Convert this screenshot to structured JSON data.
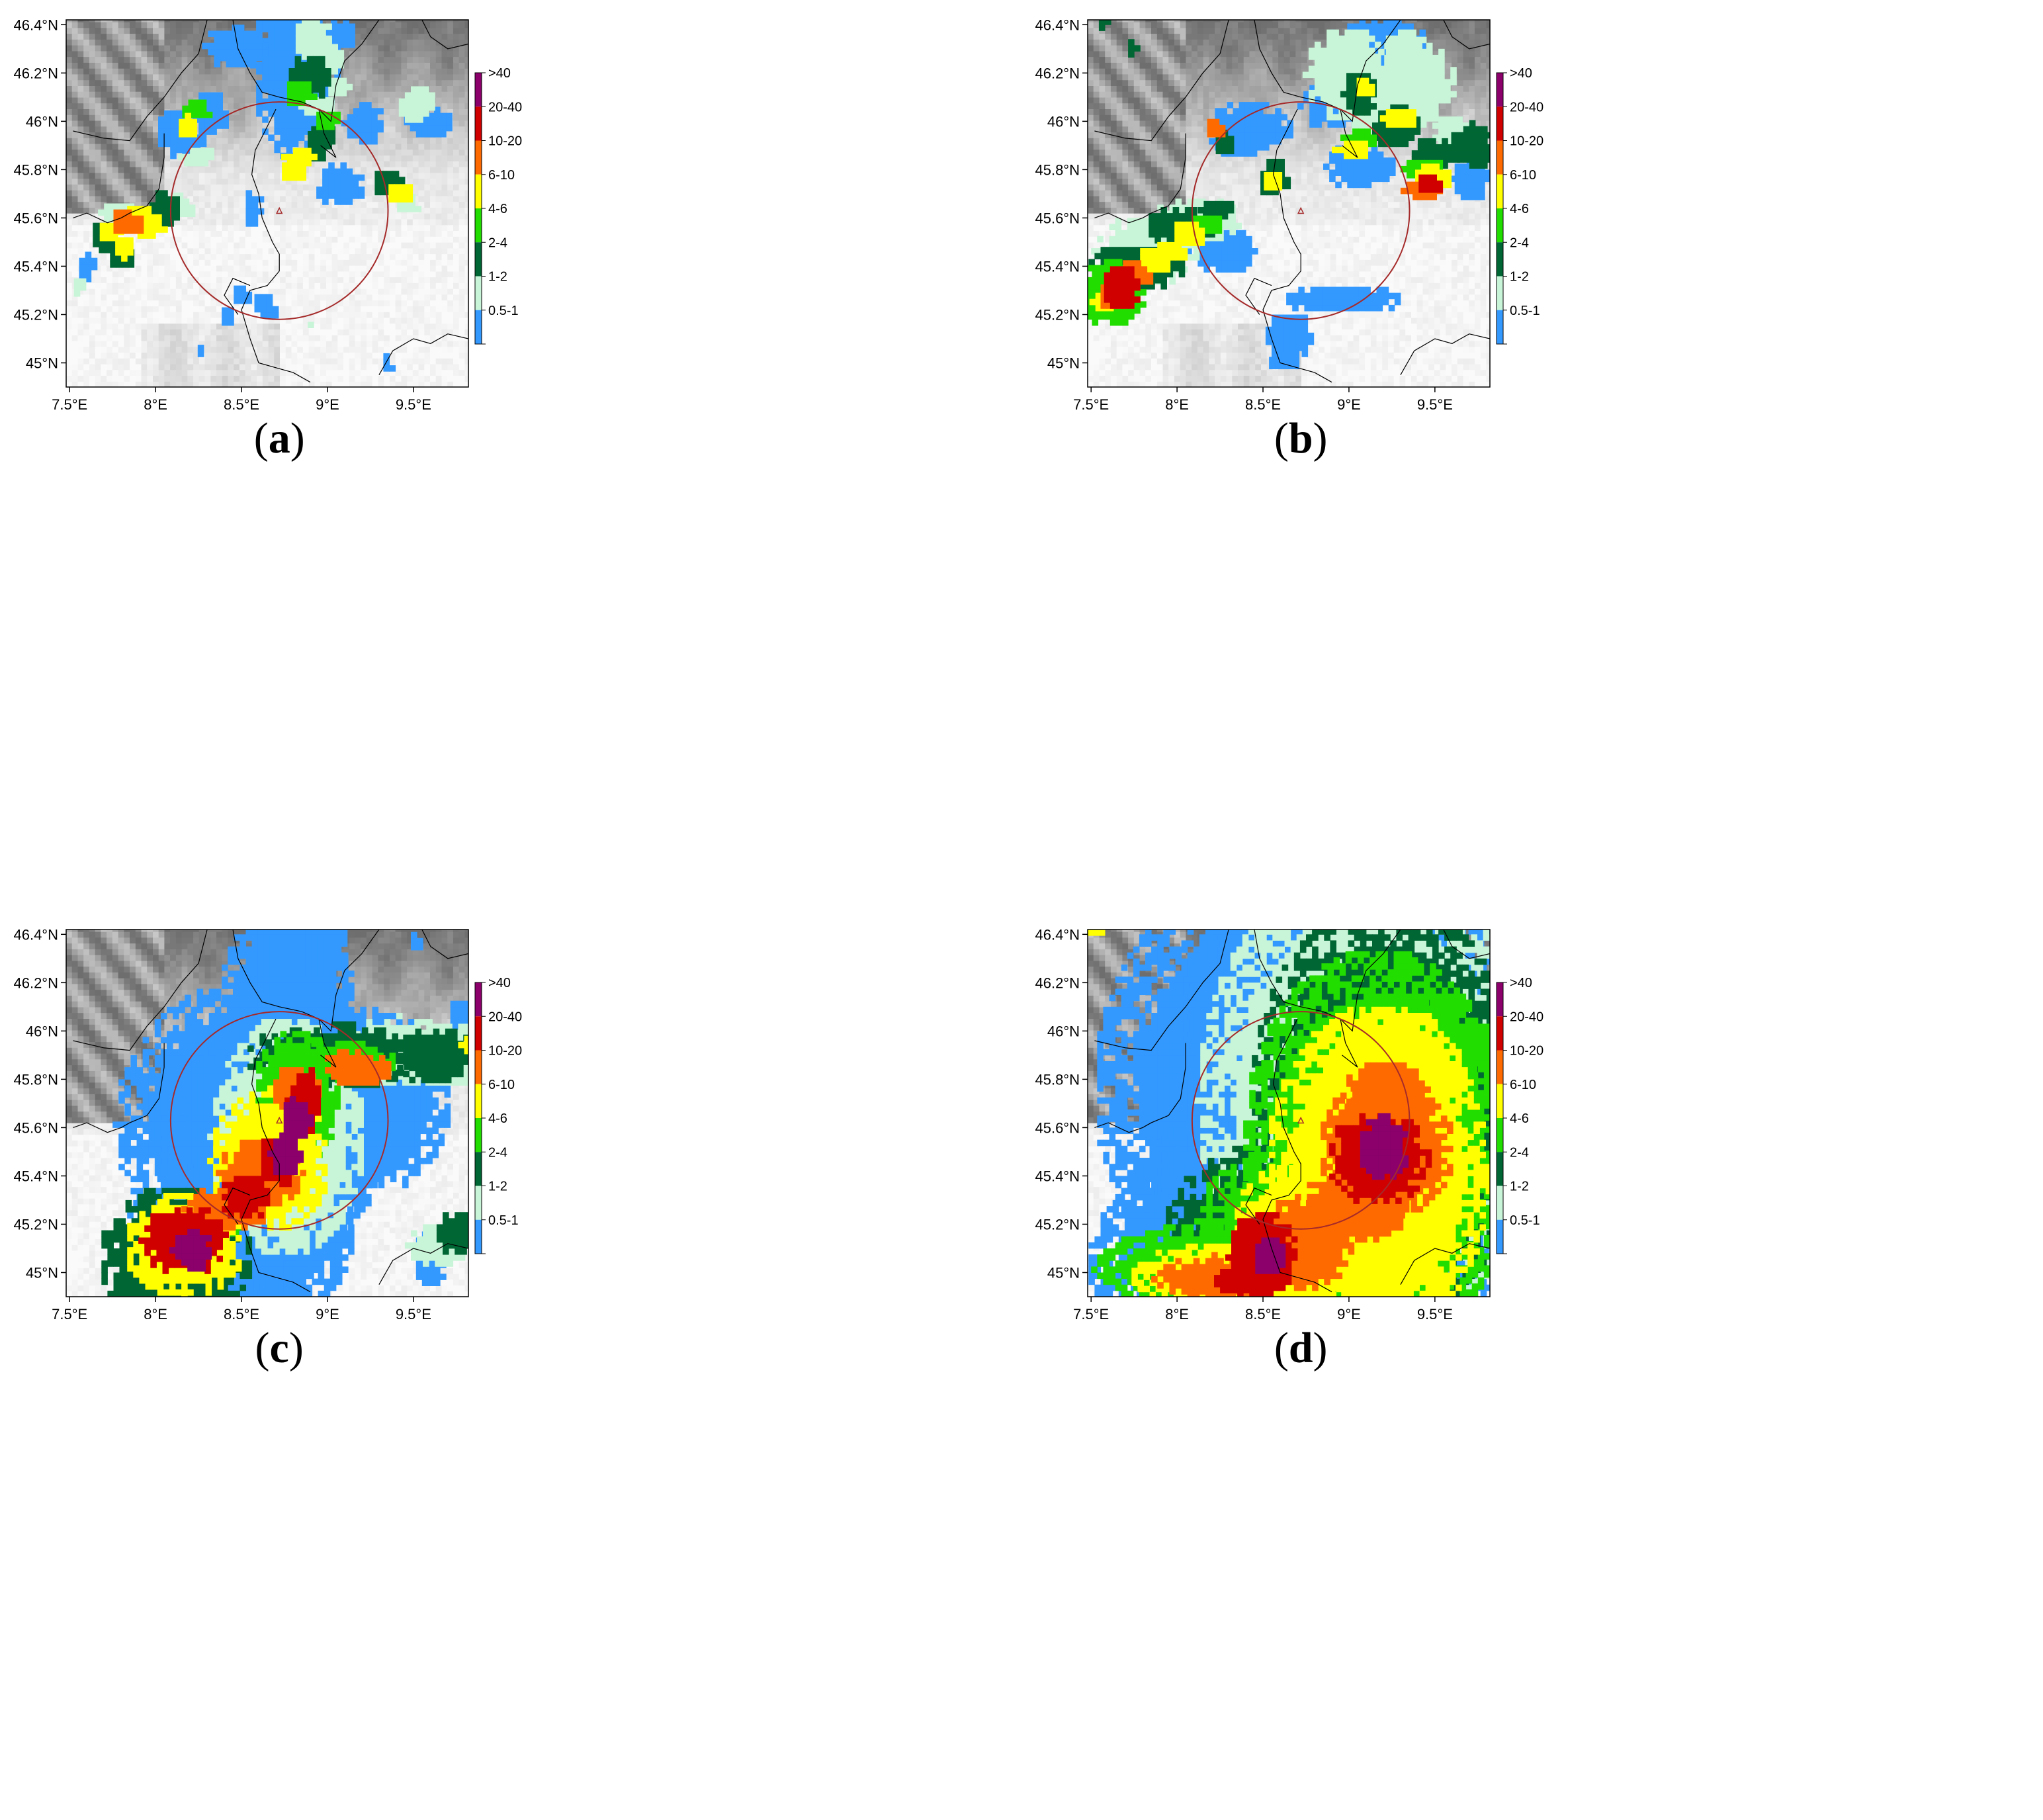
{
  "axes": {
    "lat_ticks": [
      "46.4°N",
      "46.2°N",
      "46°N",
      "45.8°N",
      "45.6°N",
      "45.4°N",
      "45.2°N",
      "45°N"
    ],
    "lat_values": [
      46.4,
      46.2,
      46.0,
      45.8,
      45.6,
      45.4,
      45.2,
      45.0
    ],
    "lon_ticks": [
      "7.5°E",
      "8°E",
      "8.5°E",
      "9°E",
      "9.5°E"
    ],
    "lon_values": [
      7.5,
      8.0,
      8.5,
      9.0,
      9.5
    ],
    "lon_range": [
      7.48,
      9.82
    ],
    "lat_range": [
      44.9,
      46.42
    ]
  },
  "legend": {
    "labels": [
      ">40",
      "20-40",
      "10-20",
      "6-10",
      "4-6",
      "2-4",
      "1-2",
      "0.5-1"
    ],
    "colors": [
      "#8b006b",
      "#d00000",
      "#ff6a00",
      "#ffff00",
      "#22dd00",
      "#006633",
      "#c8f5d8",
      "#3399ff"
    ]
  },
  "radar": {
    "center": [
      8.72,
      45.63
    ],
    "radius_deg_lat": 0.45,
    "circle_color": "#a52a2a",
    "marker": "triangle"
  },
  "panels": [
    {
      "id": "a",
      "caption_open": "(",
      "caption_letter": "a",
      "caption_close": ")",
      "cells": [
        [
          7.82,
          45.57,
          0.1,
          0.06,
          2
        ],
        [
          7.72,
          45.53,
          0.08,
          0.05,
          3
        ],
        [
          7.88,
          45.6,
          0.08,
          0.05,
          3
        ],
        [
          7.8,
          45.47,
          0.07,
          0.05,
          3
        ],
        [
          7.95,
          45.55,
          0.09,
          0.06,
          3
        ],
        [
          7.68,
          45.5,
          0.08,
          0.07,
          5
        ],
        [
          8.03,
          45.62,
          0.1,
          0.08,
          5
        ],
        [
          7.78,
          45.43,
          0.08,
          0.06,
          5
        ],
        [
          7.58,
          45.38,
          0.06,
          0.07,
          7
        ],
        [
          7.53,
          45.3,
          0.04,
          0.05,
          6
        ],
        [
          7.75,
          45.61,
          0.12,
          0.05,
          6
        ],
        [
          8.12,
          45.64,
          0.1,
          0.06,
          6
        ],
        [
          8.17,
          45.97,
          0.07,
          0.06,
          3
        ],
        [
          8.16,
          45.9,
          0.11,
          0.08,
          7
        ],
        [
          8.22,
          46.03,
          0.1,
          0.04,
          4
        ],
        [
          8.23,
          45.84,
          0.1,
          0.05,
          6
        ],
        [
          8.83,
          45.84,
          0.1,
          0.05,
          3
        ],
        [
          8.78,
          45.78,
          0.08,
          0.05,
          3
        ],
        [
          8.93,
          45.88,
          0.08,
          0.07,
          5
        ],
        [
          8.88,
          46.17,
          0.14,
          0.1,
          5
        ],
        [
          8.82,
          46.1,
          0.09,
          0.06,
          4
        ],
        [
          8.94,
          46.05,
          0.11,
          0.05,
          6
        ],
        [
          9.05,
          46.13,
          0.08,
          0.05,
          6
        ],
        [
          8.95,
          45.94,
          0.08,
          0.06,
          5
        ],
        [
          8.98,
          45.99,
          0.08,
          0.05,
          4
        ],
        [
          9.34,
          45.73,
          0.1,
          0.06,
          5
        ],
        [
          9.4,
          45.69,
          0.08,
          0.05,
          3
        ],
        [
          9.45,
          45.64,
          0.08,
          0.04,
          6
        ],
        [
          8.9,
          46.33,
          0.12,
          0.1,
          6
        ],
        [
          9.0,
          46.25,
          0.08,
          0.08,
          6
        ],
        [
          8.8,
          46.22,
          0.25,
          0.4,
          7
        ],
        [
          9.05,
          46.35,
          0.1,
          0.07,
          7
        ],
        [
          9.05,
          45.72,
          0.15,
          0.09,
          7
        ],
        [
          8.55,
          45.62,
          0.06,
          0.08,
          7
        ],
        [
          8.45,
          46.3,
          0.18,
          0.1,
          7
        ],
        [
          9.2,
          45.98,
          0.12,
          0.1,
          7
        ],
        [
          9.5,
          46.05,
          0.12,
          0.08,
          6
        ],
        [
          9.56,
          45.98,
          0.15,
          0.07,
          7
        ],
        [
          7.4,
          45.8,
          0.0,
          0.0,
          7
        ],
        [
          8.48,
          45.27,
          0.06,
          0.05,
          7
        ],
        [
          8.62,
          45.22,
          0.08,
          0.06,
          7
        ],
        [
          8.4,
          45.18,
          0.05,
          0.05,
          7
        ],
        [
          8.24,
          45.03,
          0.03,
          0.03,
          7
        ],
        [
          9.33,
          44.98,
          0.04,
          0.04,
          7
        ],
        [
          8.87,
          45.15,
          0.02,
          0.03,
          6
        ],
        [
          8.3,
          46.02,
          0.12,
          0.1,
          7
        ],
        [
          8.08,
          45.95,
          0.1,
          0.08,
          7
        ]
      ]
    },
    {
      "id": "b",
      "caption_open": "(",
      "caption_letter": "b",
      "caption_close": ")",
      "cells": [
        [
          7.66,
          45.3,
          0.12,
          0.1,
          1
        ],
        [
          7.6,
          45.26,
          0.08,
          0.06,
          2
        ],
        [
          7.75,
          45.36,
          0.1,
          0.06,
          2
        ],
        [
          7.85,
          45.41,
          0.1,
          0.06,
          3
        ],
        [
          7.95,
          45.45,
          0.1,
          0.05,
          3
        ],
        [
          8.05,
          45.52,
          0.1,
          0.06,
          3
        ],
        [
          7.55,
          45.24,
          0.06,
          0.05,
          3
        ],
        [
          8.15,
          45.56,
          0.1,
          0.05,
          4
        ],
        [
          8.22,
          45.62,
          0.1,
          0.05,
          5
        ],
        [
          7.8,
          45.45,
          0.3,
          0.15,
          6
        ],
        [
          7.6,
          45.28,
          0.2,
          0.15,
          4
        ],
        [
          8.1,
          45.58,
          0.25,
          0.1,
          6
        ],
        [
          8.0,
          45.55,
          0.2,
          0.08,
          5
        ],
        [
          7.75,
          45.38,
          0.3,
          0.1,
          5
        ],
        [
          8.25,
          45.45,
          0.2,
          0.1,
          7
        ],
        [
          9.45,
          45.73,
          0.08,
          0.05,
          1
        ],
        [
          9.42,
          45.7,
          0.12,
          0.05,
          2
        ],
        [
          9.47,
          45.76,
          0.12,
          0.06,
          3
        ],
        [
          9.42,
          45.79,
          0.12,
          0.05,
          4
        ],
        [
          9.48,
          45.85,
          0.15,
          0.07,
          5
        ],
        [
          9.7,
          45.88,
          0.14,
          0.1,
          5
        ],
        [
          9.6,
          45.92,
          0.15,
          0.1,
          6
        ],
        [
          9.0,
          45.87,
          0.1,
          0.05,
          3
        ],
        [
          9.05,
          45.92,
          0.1,
          0.05,
          4
        ],
        [
          9.1,
          45.99,
          0.12,
          0.08,
          6
        ],
        [
          9.25,
          45.97,
          0.15,
          0.1,
          5
        ],
        [
          9.28,
          46.0,
          0.1,
          0.05,
          3
        ],
        [
          9.07,
          46.13,
          0.06,
          0.05,
          3
        ],
        [
          9.05,
          46.1,
          0.1,
          0.1,
          5
        ],
        [
          8.98,
          46.18,
          0.25,
          0.2,
          6
        ],
        [
          9.35,
          46.15,
          0.25,
          0.2,
          6
        ],
        [
          9.3,
          46.28,
          0.12,
          0.1,
          6
        ],
        [
          9.15,
          46.3,
          0.3,
          0.12,
          7
        ],
        [
          8.9,
          46.05,
          0.2,
          0.1,
          7
        ],
        [
          8.4,
          45.95,
          0.25,
          0.12,
          7
        ],
        [
          8.53,
          45.74,
          0.06,
          0.05,
          3
        ],
        [
          8.55,
          45.75,
          0.1,
          0.08,
          5
        ],
        [
          8.25,
          45.9,
          0.06,
          0.06,
          5
        ],
        [
          8.2,
          45.95,
          0.06,
          0.04,
          2
        ],
        [
          9.05,
          45.8,
          0.2,
          0.1,
          7
        ],
        [
          8.95,
          45.25,
          0.35,
          0.06,
          7
        ],
        [
          8.63,
          45.1,
          0.15,
          0.1,
          7
        ],
        [
          8.6,
          45.0,
          0.1,
          0.05,
          7
        ],
        [
          7.55,
          46.39,
          0.04,
          0.04,
          5
        ],
        [
          7.72,
          46.28,
          0.04,
          0.04,
          5
        ],
        [
          9.7,
          45.75,
          0.12,
          0.1,
          7
        ]
      ]
    },
    {
      "id": "c",
      "caption_open": "(",
      "caption_letter": "c",
      "caption_close": ")",
      "cells": [
        [
          8.76,
          45.55,
          0.2,
          0.2,
          7
        ],
        [
          8.8,
          45.62,
          0.09,
          0.09,
          0
        ],
        [
          8.75,
          45.48,
          0.1,
          0.1,
          0
        ],
        [
          8.2,
          45.08,
          0.12,
          0.1,
          0
        ],
        [
          8.15,
          45.12,
          0.25,
          0.15,
          1
        ],
        [
          8.5,
          45.3,
          0.15,
          0.1,
          1
        ],
        [
          8.7,
          45.45,
          0.12,
          0.12,
          1
        ],
        [
          8.85,
          45.7,
          0.1,
          0.15,
          1
        ],
        [
          8.6,
          45.4,
          0.25,
          0.15,
          2
        ],
        [
          8.4,
          45.25,
          0.25,
          0.1,
          2
        ],
        [
          8.8,
          45.75,
          0.15,
          0.1,
          2
        ],
        [
          9.15,
          45.83,
          0.2,
          0.08,
          2
        ],
        [
          8.15,
          45.1,
          0.35,
          0.22,
          3
        ],
        [
          8.65,
          45.45,
          0.35,
          0.3,
          3
        ],
        [
          8.8,
          45.7,
          0.25,
          0.3,
          4
        ],
        [
          9.1,
          45.86,
          0.3,
          0.1,
          4
        ],
        [
          8.3,
          45.2,
          0.2,
          0.1,
          4
        ],
        [
          8.1,
          45.05,
          0.45,
          0.3,
          5
        ],
        [
          8.75,
          45.55,
          0.45,
          0.5,
          6
        ],
        [
          9.0,
          45.88,
          0.5,
          0.14,
          5
        ],
        [
          9.4,
          45.9,
          0.35,
          0.15,
          6
        ],
        [
          9.62,
          45.88,
          0.25,
          0.12,
          5
        ],
        [
          9.7,
          45.83,
          0.2,
          0.08,
          6
        ],
        [
          9.68,
          45.93,
          0.2,
          0.1,
          6
        ],
        [
          9.8,
          45.93,
          0.04,
          0.05,
          3
        ],
        [
          9.75,
          45.15,
          0.15,
          0.1,
          5
        ],
        [
          9.65,
          45.1,
          0.2,
          0.1,
          6
        ],
        [
          8.55,
          45.6,
          0.8,
          0.6,
          7
        ],
        [
          8.6,
          45.4,
          0.6,
          0.7,
          7
        ],
        [
          8.75,
          46.05,
          0.4,
          0.5,
          7
        ],
        [
          9.2,
          45.7,
          0.5,
          0.4,
          7
        ],
        [
          8.4,
          45.15,
          0.6,
          0.3,
          7
        ],
        [
          8.3,
          45.0,
          0.5,
          0.15,
          7
        ],
        [
          8.95,
          46.35,
          0.15,
          0.15,
          7
        ],
        [
          9.5,
          46.35,
          0.05,
          0.04,
          7
        ],
        [
          9.78,
          45.95,
          0.1,
          0.2,
          7
        ],
        [
          9.58,
          45.04,
          0.1,
          0.12,
          7
        ],
        [
          8.0,
          45.0,
          0.1,
          0.1,
          7
        ]
      ]
    },
    {
      "id": "d",
      "caption_open": "(",
      "caption_letter": "d",
      "caption_close": ")",
      "cells": [
        [
          9.18,
          45.5,
          0.15,
          0.14,
          0
        ],
        [
          8.52,
          45.05,
          0.1,
          0.08,
          0
        ],
        [
          9.15,
          45.46,
          0.3,
          0.2,
          1
        ],
        [
          8.48,
          45.05,
          0.2,
          0.2,
          1
        ],
        [
          8.3,
          44.95,
          0.12,
          0.06,
          1
        ],
        [
          9.2,
          45.5,
          0.4,
          0.3,
          2
        ],
        [
          9.2,
          45.72,
          0.25,
          0.15,
          2
        ],
        [
          9.0,
          45.25,
          0.35,
          0.15,
          2
        ],
        [
          8.7,
          45.1,
          0.3,
          0.2,
          2
        ],
        [
          8.2,
          44.96,
          0.35,
          0.1,
          2
        ],
        [
          9.15,
          45.4,
          0.65,
          0.7,
          3
        ],
        [
          9.25,
          45.8,
          0.4,
          0.3,
          3
        ],
        [
          8.85,
          45.22,
          0.55,
          0.25,
          3
        ],
        [
          8.35,
          44.97,
          0.65,
          0.15,
          3
        ],
        [
          9.15,
          45.48,
          0.8,
          0.85,
          4
        ],
        [
          9.45,
          45.88,
          0.3,
          0.25,
          4
        ],
        [
          9.7,
          45.93,
          0.2,
          0.1,
          4
        ],
        [
          8.8,
          45.2,
          0.7,
          0.35,
          4
        ],
        [
          8.25,
          45.0,
          0.75,
          0.2,
          4
        ],
        [
          9.2,
          45.65,
          0.8,
          0.9,
          5
        ],
        [
          9.6,
          45.9,
          0.35,
          0.2,
          5
        ],
        [
          8.7,
          45.15,
          0.8,
          0.4,
          5
        ],
        [
          9.1,
          45.7,
          1.0,
          1.0,
          6
        ],
        [
          8.7,
          45.75,
          1.2,
          1.0,
          7
        ],
        [
          9.0,
          46.05,
          1.0,
          0.6,
          7
        ],
        [
          9.3,
          45.6,
          0.9,
          0.9,
          7
        ],
        [
          8.7,
          45.25,
          1.0,
          0.5,
          7
        ],
        [
          8.35,
          45.05,
          0.9,
          0.4,
          7
        ],
        [
          7.5,
          46.4,
          0.06,
          0.03,
          3
        ]
      ]
    }
  ]
}
